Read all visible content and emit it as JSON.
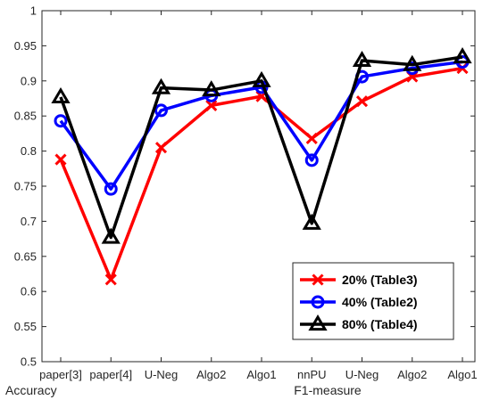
{
  "chart_data": {
    "type": "line",
    "title": "",
    "xlabel": "",
    "ylabel": "",
    "categories": [
      "paper[3]",
      "paper[4]",
      "U-Neg",
      "Algo2",
      "Algo1",
      "nnPU",
      "U-Neg",
      "Algo2",
      "Algo1"
    ],
    "group_labels": [
      {
        "label": "Accuracy",
        "start_index": 0
      },
      {
        "label": "F1-measure",
        "start_index": 5
      }
    ],
    "ylim": [
      0.5,
      1.0
    ],
    "yticks": [
      "0.5",
      "0.55",
      "0.6",
      "0.65",
      "0.7",
      "0.75",
      "0.8",
      "0.85",
      "0.9",
      "0.95",
      "1"
    ],
    "ytick_values": [
      0.5,
      0.55,
      0.6,
      0.65,
      0.7,
      0.75,
      0.8,
      0.85,
      0.9,
      0.95,
      1.0
    ],
    "grid": false,
    "legend_position": "bottom-right",
    "series": [
      {
        "name": "20% (Table3)",
        "color": "#ff0000",
        "marker": "x",
        "values": [
          0.788,
          0.617,
          0.805,
          0.865,
          0.878,
          0.818,
          0.871,
          0.906,
          0.918
        ]
      },
      {
        "name": "40% (Table2)",
        "color": "#0000ff",
        "marker": "circle",
        "values": [
          0.843,
          0.746,
          0.858,
          0.879,
          0.891,
          0.787,
          0.906,
          0.918,
          0.927
        ]
      },
      {
        "name": "80% (Table4)",
        "color": "#000000",
        "marker": "triangle",
        "values": [
          0.877,
          0.677,
          0.89,
          0.887,
          0.9,
          0.697,
          0.929,
          0.923,
          0.934
        ]
      }
    ]
  }
}
